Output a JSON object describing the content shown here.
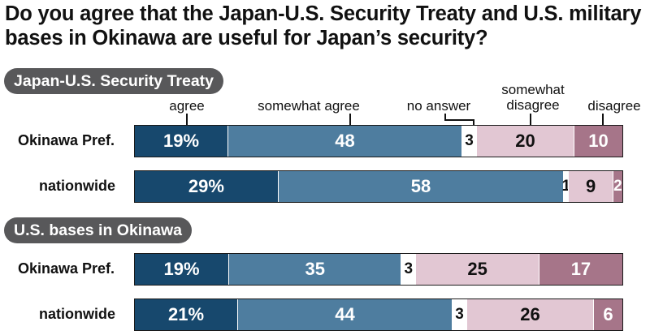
{
  "title": "Do you agree that the Japan-U.S. Security Treaty and U.S. military bases in Okinawa are useful for Japan’s security?",
  "legend": {
    "agree": "agree",
    "somewhat_agree": "somewhat agree",
    "no_answer": "no answer",
    "somewhat_disagree_line1": "somewhat",
    "somewhat_disagree_line2": "disagree",
    "disagree": "disagree"
  },
  "colors": {
    "agree": "#17486d",
    "somewhat_agree": "#4e7d9f",
    "no_answer": "#ffffff",
    "somewhat_disagree": "#e2c7d3",
    "disagree": "#a67589"
  },
  "chart_data": [
    {
      "type": "bar",
      "orientation": "horizontal-stacked-100",
      "title": "Japan-U.S. Security Treaty",
      "categories": [
        "Okinawa Pref.",
        "nationwide"
      ],
      "series": [
        {
          "name": "agree",
          "values": [
            19,
            29
          ],
          "labels": [
            "19%",
            "29%"
          ]
        },
        {
          "name": "somewhat agree",
          "values": [
            48,
            58
          ],
          "labels": [
            "48",
            "58"
          ]
        },
        {
          "name": "no answer",
          "values": [
            3,
            1
          ],
          "labels": [
            "3",
            "1"
          ]
        },
        {
          "name": "somewhat disagree",
          "values": [
            20,
            9
          ],
          "labels": [
            "20",
            "9"
          ]
        },
        {
          "name": "disagree",
          "values": [
            10,
            2
          ],
          "labels": [
            "10",
            "2"
          ]
        }
      ]
    },
    {
      "type": "bar",
      "orientation": "horizontal-stacked-100",
      "title": "U.S. bases in Okinawa",
      "categories": [
        "Okinawa Pref.",
        "nationwide"
      ],
      "series": [
        {
          "name": "agree",
          "values": [
            19,
            21
          ],
          "labels": [
            "19%",
            "21%"
          ]
        },
        {
          "name": "somewhat agree",
          "values": [
            35,
            44
          ],
          "labels": [
            "35",
            "44"
          ]
        },
        {
          "name": "no answer",
          "values": [
            3,
            3
          ],
          "labels": [
            "3",
            "3"
          ]
        },
        {
          "name": "somewhat disagree",
          "values": [
            25,
            26
          ],
          "labels": [
            "25",
            "26"
          ]
        },
        {
          "name": "disagree",
          "values": [
            17,
            6
          ],
          "labels": [
            "17",
            "6"
          ]
        }
      ]
    }
  ]
}
